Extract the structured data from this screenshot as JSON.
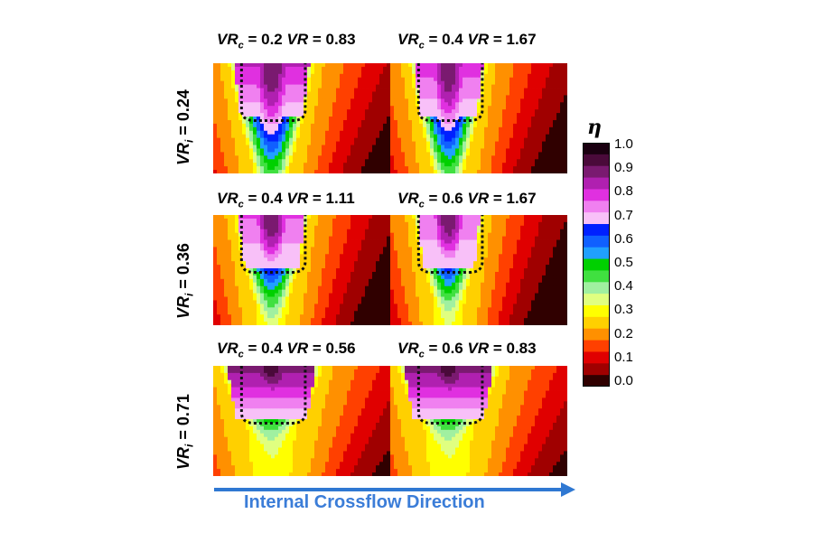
{
  "panels": [
    {
      "row": 0,
      "col": 0,
      "vrc": "0.2",
      "vr": "0.83",
      "core": 0.95,
      "mag": 0.55,
      "reach": 0.95,
      "width": 0.45
    },
    {
      "row": 0,
      "col": 1,
      "vrc": "0.4",
      "vr": "1.67",
      "core": 0.95,
      "mag": 0.45,
      "reach": 0.92,
      "width": 0.4
    },
    {
      "row": 1,
      "col": 0,
      "vrc": "0.4",
      "vr": "1.11",
      "core": 0.95,
      "mag": 0.35,
      "reach": 0.7,
      "width": 0.38
    },
    {
      "row": 1,
      "col": 1,
      "vrc": "0.6",
      "vr": "1.67",
      "core": 0.95,
      "mag": 0.3,
      "reach": 0.65,
      "width": 0.35
    },
    {
      "row": 2,
      "col": 0,
      "vrc": "0.4",
      "vr": "0.56",
      "core": 0.98,
      "mag": 0.78,
      "reach": 0.45,
      "width": 0.55
    },
    {
      "row": 2,
      "col": 1,
      "vrc": "0.6",
      "vr": "0.83",
      "core": 0.98,
      "mag": 0.78,
      "reach": 0.45,
      "width": 0.55
    }
  ],
  "row_labels": [
    {
      "var": "VR",
      "sub": "i",
      "text": " = 0.24"
    },
    {
      "var": "VR",
      "sub": "i",
      "text": " = 0.36"
    },
    {
      "var": "VR",
      "sub": "i",
      "text": " = 0.71"
    }
  ],
  "colorbar": {
    "symbol": "η",
    "ticks": [
      "1.0",
      "0.9",
      "0.8",
      "0.7",
      "0.6",
      "0.5",
      "0.4",
      "0.3",
      "0.2",
      "0.1",
      "0.0"
    ],
    "colors": [
      "#1a0010",
      "#4a0a3a",
      "#7a1a70",
      "#b020b0",
      "#e030e0",
      "#f080f0",
      "#f8c0f8",
      "#0020ff",
      "#1060ff",
      "#20a0ff",
      "#00d000",
      "#40e040",
      "#a0f0a0",
      "#e0ff80",
      "#ffff00",
      "#ffd000",
      "#ff9000",
      "#ff4000",
      "#e00000",
      "#a00000",
      "#300000"
    ]
  },
  "direction_label": "Internal Crossflow Direction",
  "arrow_color": "#2f78d2"
}
